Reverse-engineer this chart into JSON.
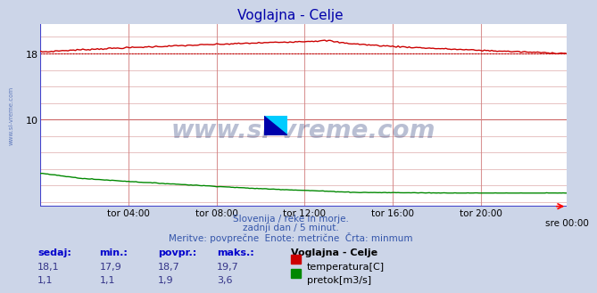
{
  "title": "Voglajna - Celje",
  "title_color": "#0000aa",
  "bg_color": "#ccd5e8",
  "plot_bg_color": "#ffffff",
  "grid_minor_color": "#ddaaaa",
  "grid_major_color": "#cc6666",
  "n_points": 288,
  "temp_min": 17.9,
  "temp_max": 19.7,
  "flow_min": 1.1,
  "flow_max": 3.6,
  "temp_color": "#cc0000",
  "flow_color": "#008800",
  "blue_axis_color": "#4444cc",
  "watermark_text": "www.si-vreme.com",
  "watermark_color": "#1a2e6e",
  "sidewatermark_color": "#3355aa",
  "ylim_low": -0.5,
  "ylim_high": 21.5,
  "ytick_values": [
    10,
    18
  ],
  "ytick_labels": [
    "10",
    "18"
  ],
  "xticklabels": [
    "tor 04:00",
    "tor 08:00",
    "tor 12:00",
    "tor 16:00",
    "tor 20:00",
    "sre 00:00"
  ],
  "subtitle1": "Slovenija / reke in morje.",
  "subtitle2": "zadnji dan / 5 minut.",
  "subtitle3": "Meritve: povprečne  Enote: metrične  Črta: minmum",
  "subtitle_color": "#3355aa",
  "legend_title": "Voglajna - Celje",
  "legend_temp": "temperatura[C]",
  "legend_flow": "pretok[m3/s]",
  "table_headers": [
    "sedaj:",
    "min.:",
    "povpr.:",
    "maks.:"
  ],
  "table_header_color": "#0000cc",
  "table_val_color": "#333388",
  "table_temp_vals": [
    "18,1",
    "17,9",
    "18,7",
    "19,7"
  ],
  "table_flow_vals": [
    "1,1",
    "1,1",
    "1,9",
    "3,6"
  ],
  "legend_title_color": "#000000",
  "legend_text_color": "#000000"
}
